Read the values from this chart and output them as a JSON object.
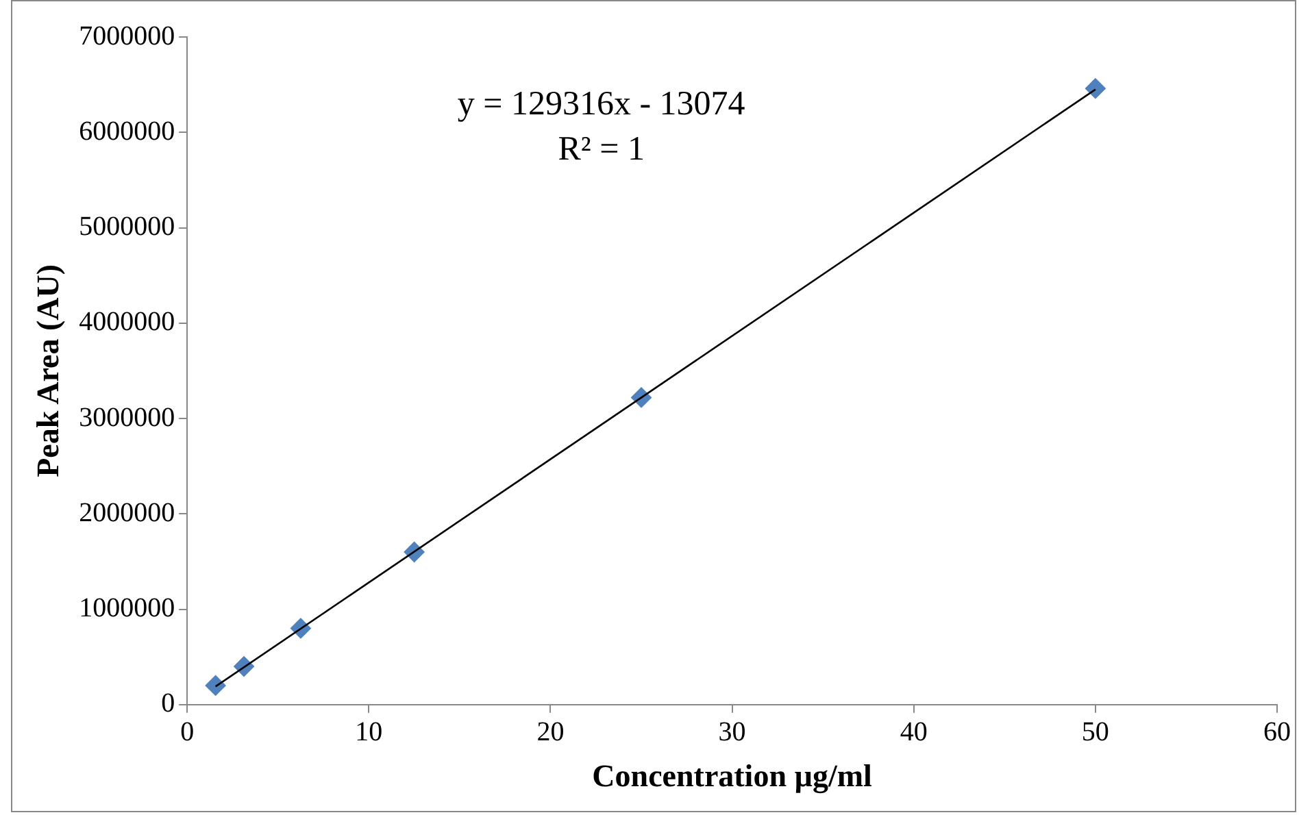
{
  "chart_data": {
    "type": "scatter",
    "xlabel": "Concentration µg/ml",
    "ylabel": "Peak Area (AU)",
    "series": [
      {
        "type": "scatter",
        "marker": "diamond",
        "color": "#4f81bd",
        "x": [
          1.5625,
          3.125,
          6.25,
          12.5,
          25,
          50
        ],
        "values": [
          200000,
          400000,
          800000,
          1600000,
          3220000,
          6460000
        ]
      },
      {
        "type": "line",
        "marker": "none",
        "color": "#000000",
        "x": [
          1.5625,
          50
        ],
        "values": [
          190000,
          6450000
        ]
      }
    ],
    "xlim": [
      0,
      60
    ],
    "xticks": [
      0,
      10,
      20,
      30,
      40,
      50,
      60
    ],
    "ylim": [
      0,
      7000000
    ],
    "yticks": [
      0,
      1000000,
      2000000,
      3000000,
      4000000,
      5000000,
      6000000,
      7000000
    ],
    "grid": false,
    "legend": false,
    "annotations": [
      "y = 129316x - 13074",
      "R² = 1"
    ]
  }
}
